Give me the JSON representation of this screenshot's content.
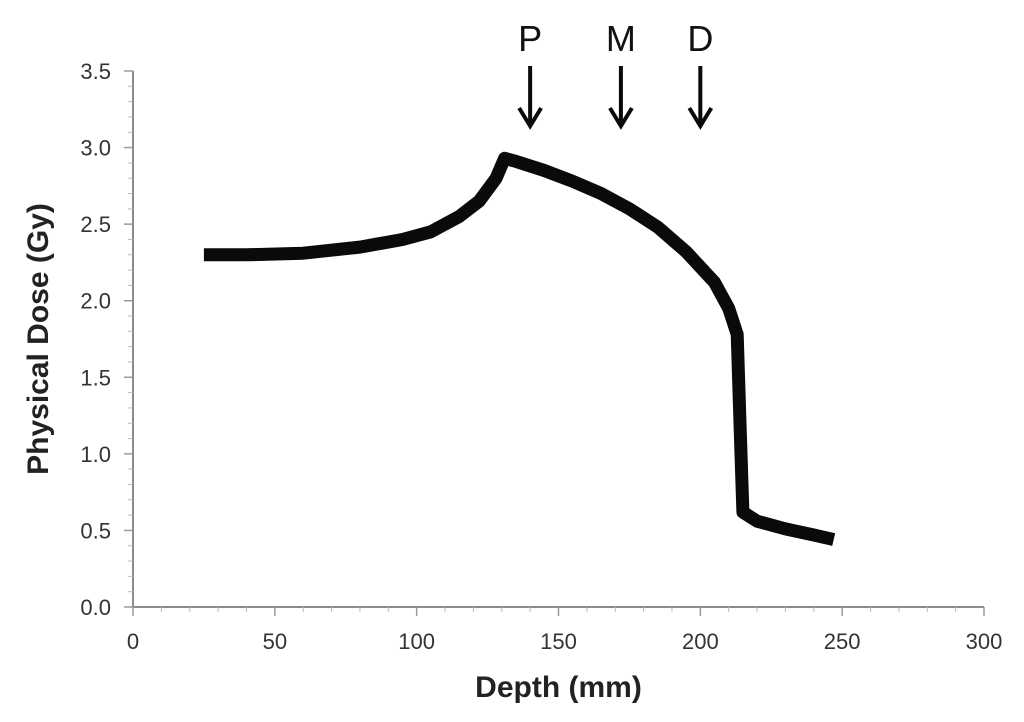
{
  "chart_data": {
    "type": "line",
    "xlabel": "Depth (mm)",
    "ylabel": "Physical Dose (Gy)",
    "xlim": [
      0,
      300
    ],
    "ylim": [
      0,
      3.5
    ],
    "x_ticks": [
      "0",
      "50",
      "100",
      "150",
      "200",
      "250",
      "300"
    ],
    "y_ticks": [
      "0.0",
      "0.5",
      "1.0",
      "1.5",
      "2.0",
      "2.5",
      "3.0",
      "3.5"
    ],
    "grid": false,
    "series": [
      {
        "color": "#0a0a0a",
        "points": [
          [
            25,
            2.3
          ],
          [
            40,
            2.3
          ],
          [
            60,
            2.31
          ],
          [
            80,
            2.35
          ],
          [
            95,
            2.4
          ],
          [
            105,
            2.45
          ],
          [
            115,
            2.55
          ],
          [
            122,
            2.65
          ],
          [
            128,
            2.8
          ],
          [
            131,
            2.93
          ],
          [
            135,
            2.91
          ],
          [
            145,
            2.85
          ],
          [
            155,
            2.78
          ],
          [
            165,
            2.7
          ],
          [
            175,
            2.6
          ],
          [
            185,
            2.48
          ],
          [
            195,
            2.32
          ],
          [
            205,
            2.12
          ],
          [
            210,
            1.95
          ],
          [
            213,
            1.78
          ],
          [
            214,
            1.2
          ],
          [
            215,
            0.62
          ],
          [
            220,
            0.56
          ],
          [
            230,
            0.51
          ],
          [
            240,
            0.47
          ],
          [
            247,
            0.44
          ]
        ]
      }
    ],
    "annotations": [
      {
        "label": "P",
        "x": 140
      },
      {
        "label": "M",
        "x": 172
      },
      {
        "label": "D",
        "x": 200
      }
    ]
  }
}
